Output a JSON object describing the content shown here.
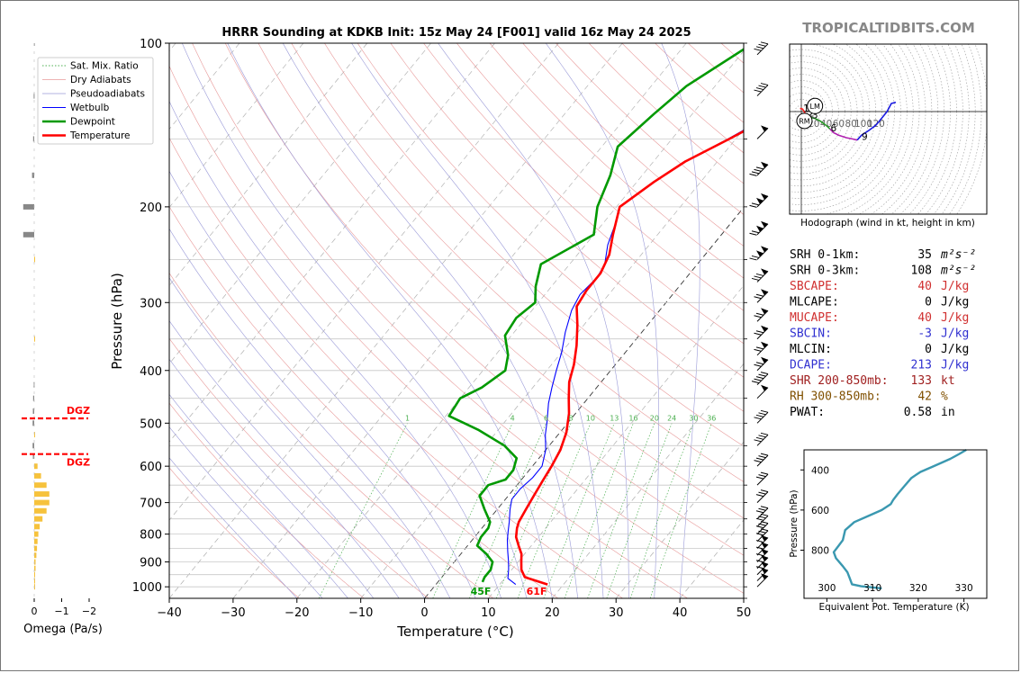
{
  "brand": "TROPICALTIDBITS.COM",
  "colors": {
    "temperature": "#ff0000",
    "dewpoint": "#009900",
    "wetbulb": "#0000ff",
    "dry_adiabat": "#e89a9a",
    "pseudoadiabat": "#9a9ad8",
    "mixing_ratio": "#4caf50",
    "omega": "#f6c23c",
    "omega_neg": "#888888",
    "dgz": "#ff0000",
    "hodo_0_3": "#ff2020",
    "hodo_3_6": "#2a9a2a",
    "hodo_6_9": "#b020b0",
    "hodo_9_12": "#1a1ae0",
    "theta_e": "#3a98b0"
  },
  "chart_data": [
    {
      "id": "skewt",
      "type": "line",
      "title": "HRRR Sounding at KDKB Init: 15z May 24 [F001] valid 16z May 24 2025",
      "xlabel": "Temperature (°C)",
      "ylabel": "Pressure (hPa)",
      "xlim": [
        -40,
        50
      ],
      "ylim": [
        1050,
        100
      ],
      "yscale": "log",
      "x_ticks": [
        -40,
        -30,
        -20,
        -10,
        0,
        10,
        20,
        30,
        40,
        50
      ],
      "x_tick_labels": [
        "−40",
        "−30",
        "−20",
        "−10",
        "0",
        "10",
        "20",
        "30",
        "40",
        "50"
      ],
      "y_ticks": [
        1000,
        900,
        800,
        700,
        600,
        500,
        400,
        300,
        200,
        100
      ],
      "y_tick_labels": [
        "1000",
        "900",
        "800",
        "700",
        "600",
        "500",
        "400",
        "300",
        "200",
        "100"
      ],
      "legend_position": "top-left",
      "legend": [
        {
          "label": "Sat. Mix. Ratio",
          "style": "dotted",
          "color": "#4caf50"
        },
        {
          "label": "Dry Adiabats",
          "style": "solid-thin",
          "color": "#e89a9a"
        },
        {
          "label": "Pseudoadiabats",
          "style": "solid-thin",
          "color": "#9a9ad8"
        },
        {
          "label": "Wetbulb",
          "style": "solid",
          "color": "#0000ff"
        },
        {
          "label": "Dewpoint",
          "style": "bold",
          "color": "#009900"
        },
        {
          "label": "Temperature",
          "style": "bold",
          "color": "#ff0000"
        }
      ],
      "mixing_ratio_labels": [
        "1",
        "4",
        "6",
        "8",
        "10",
        "13",
        "16",
        "20",
        "24",
        "30",
        "36"
      ],
      "mixing_ratio_values": [
        1,
        4,
        6,
        8,
        10,
        13,
        16,
        20,
        24,
        30,
        36
      ],
      "surface_temp_label": "61F",
      "surface_dewpoint_label": "45F",
      "series": [
        {
          "name": "Temperature",
          "points": [
            [
              17.5,
              990
            ],
            [
              16,
              980
            ],
            [
              13,
              960
            ],
            [
              11.5,
              930
            ],
            [
              10.5,
              900
            ],
            [
              9.5,
              870
            ],
            [
              8,
              840
            ],
            [
              6.5,
              810
            ],
            [
              5.5,
              780
            ],
            [
              5,
              760
            ],
            [
              4.5,
              720
            ],
            [
              4,
              680
            ],
            [
              3.5,
              640
            ],
            [
              3,
              600
            ],
            [
              2.3,
              560
            ],
            [
              1,
              520
            ],
            [
              -1,
              480
            ],
            [
              -3,
              450
            ],
            [
              -5,
              420
            ],
            [
              -6.5,
              390
            ],
            [
              -8.5,
              360
            ],
            [
              -11,
              330
            ],
            [
              -13.5,
              305
            ],
            [
              -14,
              285
            ],
            [
              -14,
              265
            ],
            [
              -15,
              245
            ],
            [
              -17,
              225
            ],
            [
              -19.5,
              200
            ],
            [
              -17.3,
              180
            ],
            [
              -15,
              165
            ],
            [
              -11,
              150
            ],
            [
              -7.5,
              137
            ],
            [
              -4.5,
              125
            ],
            [
              -2.5,
              115
            ],
            [
              -1,
              105
            ],
            [
              0,
              100
            ]
          ]
        },
        {
          "name": "Dewpoint",
          "points": [
            [
              7,
              980
            ],
            [
              6.7,
              960
            ],
            [
              6.7,
              930
            ],
            [
              6,
              900
            ],
            [
              4,
              870
            ],
            [
              1.5,
              840
            ],
            [
              1,
              810
            ],
            [
              1,
              780
            ],
            [
              0.5,
              760
            ],
            [
              -2,
              720
            ],
            [
              -4.5,
              680
            ],
            [
              -4.5,
              650
            ],
            [
              -2.5,
              635
            ],
            [
              -2.5,
              610
            ],
            [
              -3.5,
              580
            ],
            [
              -7,
              550
            ],
            [
              -13,
              515
            ],
            [
              -19.5,
              485
            ],
            [
              -20,
              450
            ],
            [
              -18,
              430
            ],
            [
              -16.5,
              400
            ],
            [
              -18,
              375
            ],
            [
              -21,
              345
            ],
            [
              -21.5,
              320
            ],
            [
              -20.5,
              300
            ],
            [
              -22.5,
              280
            ],
            [
              -24.5,
              255
            ],
            [
              -20,
              225
            ],
            [
              -23,
              200
            ],
            [
              -25,
              175
            ],
            [
              -27.5,
              155
            ],
            [
              -26,
              135
            ],
            [
              -24.5,
              120
            ],
            [
              -19.5,
              100
            ]
          ]
        },
        {
          "name": "Wetbulb",
          "points": [
            [
              12.5,
              990
            ],
            [
              10.5,
              965
            ],
            [
              9.5,
              930
            ],
            [
              8.5,
              900
            ],
            [
              7,
              860
            ],
            [
              5.5,
              820
            ],
            [
              4.5,
              790
            ],
            [
              3.5,
              760
            ],
            [
              2,
              720
            ],
            [
              1,
              690
            ],
            [
              1,
              660
            ],
            [
              1.5,
              630
            ],
            [
              1.5,
              600
            ],
            [
              0,
              560
            ],
            [
              -2,
              525
            ],
            [
              -3.5,
              495
            ],
            [
              -5.5,
              460
            ],
            [
              -7,
              430
            ],
            [
              -8.5,
              400
            ],
            [
              -10,
              370
            ],
            [
              -12,
              340
            ],
            [
              -13.8,
              310
            ],
            [
              -14.5,
              290
            ],
            [
              -14,
              270
            ],
            [
              -14.5,
              255
            ],
            [
              -16.5,
              235
            ],
            [
              -18,
              215
            ],
            [
              -19.5,
              200
            ],
            [
              -17.3,
              180
            ],
            [
              -15,
              165
            ],
            [
              -11.2,
              150
            ],
            [
              -8,
              137
            ],
            [
              -5.5,
              125
            ],
            [
              -3,
              113
            ],
            [
              -1,
              100
            ]
          ]
        }
      ]
    },
    {
      "id": "omega",
      "type": "bar",
      "xlabel": "Omega (Pa/s)",
      "x_ticks": [
        0,
        -1,
        -2
      ],
      "x_tick_labels": [
        "0",
        "−1",
        "−2"
      ],
      "xlim": [
        0.5,
        -2.4
      ],
      "dgz_label": "DGZ",
      "dgz_levels": [
        490,
        570
      ],
      "levels": [
        1000,
        975,
        950,
        925,
        900,
        875,
        850,
        825,
        800,
        775,
        750,
        725,
        700,
        675,
        650,
        625,
        600,
        575,
        550,
        525,
        500,
        475,
        450,
        425,
        400,
        375,
        350,
        325,
        300,
        275,
        250,
        225,
        200,
        175,
        150,
        125,
        100
      ],
      "values": [
        -0.02,
        -0.03,
        -0.03,
        -0.05,
        -0.05,
        -0.08,
        -0.1,
        -0.12,
        -0.15,
        -0.2,
        -0.3,
        -0.45,
        -0.55,
        -0.55,
        -0.45,
        -0.25,
        -0.12,
        0.05,
        0.06,
        -0.02,
        0.06,
        0.05,
        0.04,
        0.02,
        0.0,
        0.0,
        -0.01,
        0.0,
        0.0,
        0.0,
        -0.02,
        0.4,
        0.4,
        0.08,
        0.04,
        0.02,
        0.01
      ]
    },
    {
      "id": "hodograph",
      "type": "line",
      "xlabel": "Hodograph (wind in kt, height in km)",
      "ring_labels": [
        "20",
        "40",
        "60",
        "80",
        "100",
        "120"
      ],
      "rings": [
        20,
        40,
        60,
        80,
        100,
        120
      ],
      "height_labels": [
        "1",
        "2",
        "3",
        "6",
        "9"
      ],
      "markers": [
        "LM",
        "RM"
      ],
      "segments": [
        {
          "name": "0-3 km",
          "points": [
            [
              -2,
              5
            ],
            [
              2,
              4
            ],
            [
              5,
              -1
            ],
            [
              9,
              -7
            ],
            [
              13,
              -9
            ]
          ]
        },
        {
          "name": "3-6 km",
          "points": [
            [
              13,
              -9
            ],
            [
              22,
              -11
            ],
            [
              30,
              -15
            ],
            [
              37,
              -20
            ],
            [
              42,
              -24
            ],
            [
              46,
              -28
            ]
          ]
        },
        {
          "name": "6-9 km",
          "points": [
            [
              46,
              -28
            ],
            [
              52,
              -34
            ],
            [
              60,
              -38
            ],
            [
              72,
              -42
            ],
            [
              82,
              -44
            ],
            [
              90,
              -46
            ]
          ]
        },
        {
          "name": "9-12 km",
          "points": [
            [
              90,
              -46
            ],
            [
              97,
              -38
            ],
            [
              108,
              -31
            ],
            [
              120,
              -22
            ],
            [
              130,
              -10
            ],
            [
              138,
              0
            ],
            [
              145,
              13
            ],
            [
              152,
              15
            ]
          ]
        }
      ],
      "height_marks": [
        [
          1,
          8,
          6
        ],
        [
          2,
          16,
          -2
        ],
        [
          3,
          22,
          -5
        ],
        [
          6,
          52,
          -26
        ],
        [
          9,
          102,
          -40
        ]
      ],
      "lm": [
        22,
        9
      ],
      "rm": [
        5,
        -15
      ]
    },
    {
      "id": "theta_e",
      "type": "line",
      "xlabel": "Equivalent Pot. Temperature (K)",
      "ylabel": "Pressure (hPa)",
      "xlim": [
        295,
        335
      ],
      "ylim": [
        1000,
        300
      ],
      "x_ticks": [
        300,
        310,
        320,
        330
      ],
      "y_ticks": [
        400,
        600,
        800
      ],
      "points": [
        [
          312,
          990
        ],
        [
          307.5,
          980
        ],
        [
          305.5,
          970
        ],
        [
          305,
          940
        ],
        [
          304.5,
          910
        ],
        [
          303.5,
          880
        ],
        [
          302,
          840
        ],
        [
          301.5,
          810
        ],
        [
          302.5,
          780
        ],
        [
          303.5,
          750
        ],
        [
          304,
          700
        ],
        [
          306,
          660
        ],
        [
          309.5,
          625
        ],
        [
          312,
          600
        ],
        [
          314,
          570
        ],
        [
          314.5,
          550
        ],
        [
          315.5,
          520
        ],
        [
          317,
          480
        ],
        [
          318.5,
          440
        ],
        [
          320.5,
          410
        ],
        [
          323,
          385
        ],
        [
          325,
          365
        ],
        [
          327,
          345
        ],
        [
          329,
          320
        ],
        [
          330.5,
          300
        ]
      ]
    }
  ],
  "indices": [
    {
      "label": "SRH 0-1km:",
      "value": "35",
      "unit_html": "m²s⁻²",
      "color": "#000000"
    },
    {
      "label": "SRH 0-3km:",
      "value": "108",
      "unit_html": "m²s⁻²",
      "color": "#000000"
    },
    {
      "label": "SBCAPE:",
      "value": "40",
      "unit_html": "J/kg",
      "color": "#d03030"
    },
    {
      "label": "MLCAPE:",
      "value": "0",
      "unit_html": "J/kg",
      "color": "#000000"
    },
    {
      "label": "MUCAPE:",
      "value": "40",
      "unit_html": "J/kg",
      "color": "#d03030"
    },
    {
      "label": "SBCIN:",
      "value": "-3",
      "unit_html": "J/kg",
      "color": "#3030d0"
    },
    {
      "label": "MLCIN:",
      "value": "0",
      "unit_html": "J/kg",
      "color": "#000000"
    },
    {
      "label": "DCAPE:",
      "value": "213",
      "unit_html": "J/kg",
      "color": "#3030d0"
    },
    {
      "label": "SHR 200-850mb:",
      "value": "133",
      "unit_html": "kt",
      "color": "#a02020"
    },
    {
      "label": "RH 300-850mb:",
      "value": "42",
      "unit_html": "%",
      "color": "#805000"
    },
    {
      "label": "PWAT:",
      "value": "0.58",
      "unit_html": "in",
      "color": "#000000"
    }
  ]
}
